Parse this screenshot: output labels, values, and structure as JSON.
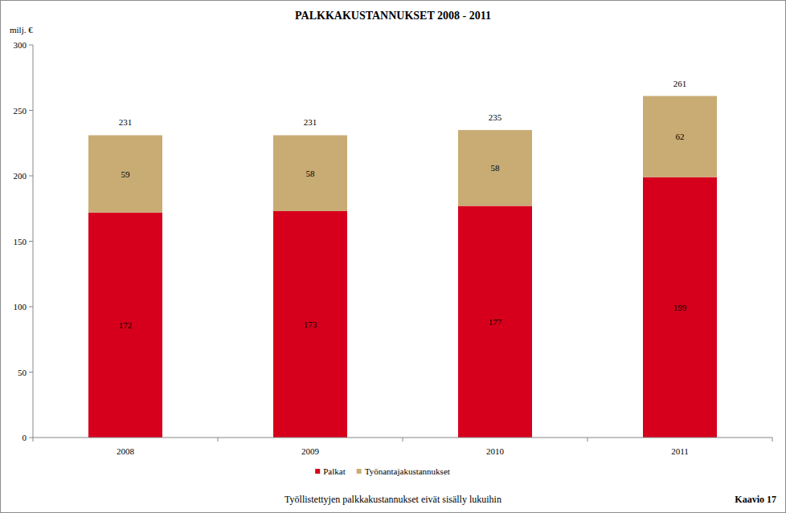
{
  "chart_data": {
    "type": "bar",
    "title": "PALKKAKUSTANNUKSET 2008 - 2011",
    "y_label": "milj. €",
    "categories": [
      "2008",
      "2009",
      "2010",
      "2011"
    ],
    "series": [
      {
        "name": "Palkat",
        "color": "#d7001c",
        "values": [
          172,
          173,
          177,
          199
        ]
      },
      {
        "name": "Työnantajakustannukset",
        "color": "#c8ac74",
        "values": [
          59,
          58,
          58,
          62
        ]
      }
    ],
    "totals": [
      231,
      231,
      235,
      261
    ],
    "ylim": [
      0,
      300
    ],
    "yticks": [
      0,
      50,
      100,
      150,
      200,
      250,
      300
    ],
    "stacked": true,
    "data_labels": true,
    "grid": false,
    "legend": "bottom",
    "note": "Työllistettyjen palkkakustannukset eivät sisälly lukuihin",
    "figure_label": "Kaavio 17"
  }
}
